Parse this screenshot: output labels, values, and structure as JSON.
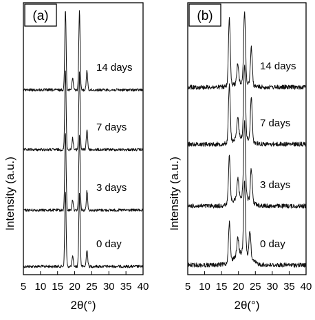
{
  "chart_data": [
    {
      "type": "line",
      "panel_label": "(a)",
      "xlabel": "2θ(°)",
      "ylabel": "Intensity (a.u.)",
      "xlim": [
        5,
        40
      ],
      "xticks": [
        5,
        10,
        15,
        20,
        25,
        30,
        35,
        40
      ],
      "grid": false,
      "series": [
        {
          "name": "0 day",
          "peaks": [
            [
              17.3,
              0.78
            ],
            [
              19.4,
              0.1
            ],
            [
              21.4,
              0.76
            ],
            [
              23.6,
              0.18
            ]
          ]
        },
        {
          "name": "3 days",
          "peaks": [
            [
              17.3,
              0.8
            ],
            [
              19.4,
              0.11
            ],
            [
              21.4,
              0.78
            ],
            [
              23.6,
              0.2
            ]
          ]
        },
        {
          "name": "7 days",
          "peaks": [
            [
              17.3,
              0.82
            ],
            [
              19.4,
              0.12
            ],
            [
              21.4,
              0.8
            ],
            [
              23.6,
              0.21
            ]
          ]
        },
        {
          "name": "14 days",
          "peaks": [
            [
              17.3,
              0.84
            ],
            [
              19.4,
              0.12
            ],
            [
              21.4,
              0.82
            ],
            [
              23.6,
              0.2
            ]
          ]
        }
      ]
    },
    {
      "type": "line",
      "panel_label": "(b)",
      "xlabel": "2θ(°)",
      "ylabel": "Intensity (a.u.)",
      "xlim": [
        5,
        40
      ],
      "xticks": [
        5,
        10,
        15,
        20,
        25,
        30,
        35,
        40
      ],
      "grid": false,
      "series": [
        {
          "name": "0 day",
          "peaks": [
            [
              17.3,
              0.44
            ],
            [
              19.8,
              0.18
            ],
            [
              21.8,
              0.82
            ],
            [
              23.4,
              0.3
            ]
          ]
        },
        {
          "name": "3 days",
          "peaks": [
            [
              17.3,
              0.52
            ],
            [
              19.8,
              0.22
            ],
            [
              21.8,
              0.84
            ],
            [
              23.8,
              0.36
            ]
          ]
        },
        {
          "name": "7 days",
          "peaks": [
            [
              17.3,
              0.64
            ],
            [
              19.8,
              0.22
            ],
            [
              21.8,
              0.82
            ],
            [
              23.8,
              0.48
            ]
          ]
        },
        {
          "name": "14 days",
          "peaks": [
            [
              17.3,
              0.75
            ],
            [
              19.8,
              0.22
            ],
            [
              21.8,
              0.8
            ],
            [
              23.8,
              0.42
            ]
          ]
        }
      ]
    }
  ]
}
